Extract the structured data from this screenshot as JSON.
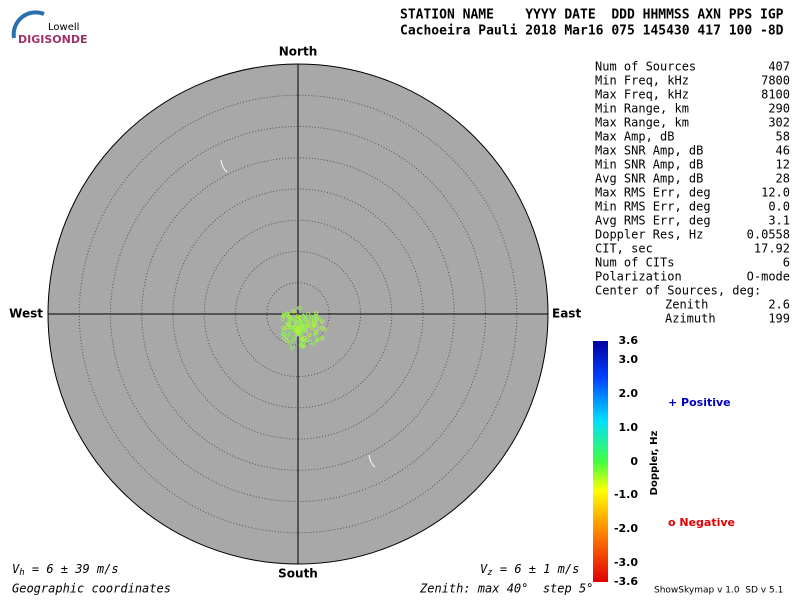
{
  "logo": {
    "top": "Lowell",
    "bottom": "DIGISONDE"
  },
  "header": {
    "columns": "STATION NAME    YYYY DATE  DDD HHMMSS AXN PPS IGP",
    "values": "Cachoeira Pauli 2018 Mar16 075 145430 417 100 -8D"
  },
  "compass": {
    "north": "North",
    "south": "South",
    "east": "East",
    "west": "West"
  },
  "stats": [
    [
      "Num of Sources",
      "407"
    ],
    [
      "Min Freq, kHz",
      "7800"
    ],
    [
      "Max Freq, kHz",
      "8100"
    ],
    [
      "Min Range, km",
      "290"
    ],
    [
      "Max Range, km",
      "302"
    ],
    [
      "Max Amp, dB",
      "58"
    ],
    [
      "Max SNR Amp, dB",
      "46"
    ],
    [
      "Min SNR Amp, dB",
      "12"
    ],
    [
      "Avg SNR Amp, dB",
      "28"
    ],
    [
      "Max RMS Err, deg",
      "12.0"
    ],
    [
      "Min RMS Err, deg",
      "0.0"
    ],
    [
      "Avg RMS Err, deg",
      "3.1"
    ],
    [
      "Doppler Res, Hz",
      "0.0558"
    ],
    [
      "CIT, sec",
      "17.92"
    ],
    [
      "Num of CITs",
      "6"
    ],
    [
      "Polarization",
      "O-mode"
    ]
  ],
  "center": {
    "title": "Center of Sources, deg:",
    "zenith_label": "Zenith",
    "zenith": "2.6",
    "azimuth_label": "Azimuth",
    "azimuth": "199"
  },
  "colorbar": {
    "label": "Doppler, Hz",
    "ticks": [
      "3.6",
      "3.0",
      "2.0",
      "1.0",
      "0",
      "-1.0",
      "-2.0",
      "-3.0",
      "-3.6"
    ],
    "positive": "+ Positive",
    "negative": "o Negative"
  },
  "footer": {
    "vh_sym": "V",
    "vh_sub": "h",
    "vh": " = 6 ± 39 m/s",
    "vz_sym": "V",
    "vz_sub": "z",
    "vz": " = 6 ± 1 m/s",
    "coords": "Geographic coordinates",
    "zenith": "Zenith: max 40°  step 5°",
    "version": "ShowSkymap v 1.0  SD v 5.1"
  }
}
